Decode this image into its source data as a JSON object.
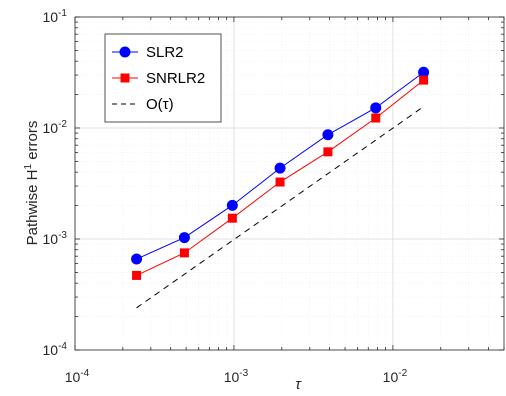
{
  "chart_data": {
    "type": "line",
    "xscale": "log",
    "yscale": "log",
    "xlim": [
      0.0001,
      0.05
    ],
    "ylim": [
      0.0001,
      0.1
    ],
    "xlabel": "τ",
    "ylabel": "Pathwise H¹ errors",
    "ylabel_parts": {
      "main": "Pathwise H",
      "sup": "1",
      "rest": " errors"
    },
    "grid": true,
    "legend_position": "top-left",
    "x_ticks": [
      {
        "value": 0.0001,
        "base": "10",
        "exp": "-4"
      },
      {
        "value": 0.001,
        "base": "10",
        "exp": "-3"
      },
      {
        "value": 0.01,
        "base": "10",
        "exp": "-2"
      }
    ],
    "y_ticks": [
      {
        "value": 0.0001,
        "base": "10",
        "exp": "-4"
      },
      {
        "value": 0.001,
        "base": "10",
        "exp": "-3"
      },
      {
        "value": 0.01,
        "base": "10",
        "exp": "-2"
      },
      {
        "value": 0.1,
        "base": "10",
        "exp": "-1"
      }
    ],
    "x": [
      0.000244,
      0.000488,
      0.000977,
      0.00195,
      0.0039,
      0.0078,
      0.0156
    ],
    "series": [
      {
        "name": "SLR2",
        "color": "#0000ff",
        "marker": "circle",
        "line_style": "solid",
        "values": [
          0.00066,
          0.00103,
          0.00201,
          0.00435,
          0.0087,
          0.0152,
          0.0318
        ]
      },
      {
        "name": "SNRLR2",
        "color": "#ff0000",
        "marker": "square",
        "line_style": "solid",
        "values": [
          0.00047,
          0.00075,
          0.00154,
          0.00326,
          0.0061,
          0.0123,
          0.027
        ]
      },
      {
        "name": "O(τ)",
        "color": "#000000",
        "marker": "none",
        "line_style": "dashed",
        "x": [
          0.000244,
          0.0156
        ],
        "values": [
          0.00024,
          0.0156
        ]
      }
    ]
  }
}
